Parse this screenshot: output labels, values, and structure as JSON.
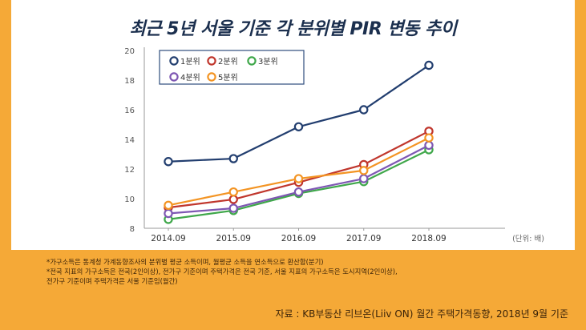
{
  "chart_data": {
    "type": "line",
    "title": "최근 5년 서울 기준 각 분위별 PIR 변동 추이",
    "categories": [
      "2014.09",
      "2015.09",
      "2016.09",
      "2017.09",
      "2018.09"
    ],
    "ylim": [
      8,
      20
    ],
    "yticks": [
      "8",
      "10",
      "12",
      "14",
      "16",
      "18",
      "20"
    ],
    "unit_label": "(단위: 배)",
    "legend_position": "top-left",
    "series": [
      {
        "name": "1분위",
        "color": "#223e6f",
        "values": [
          12.5,
          12.7,
          14.85,
          16.0,
          19.0
        ]
      },
      {
        "name": "2분위",
        "color": "#c0362c",
        "values": [
          9.4,
          9.95,
          11.1,
          12.3,
          14.55
        ]
      },
      {
        "name": "3분위",
        "color": "#3fa74a",
        "values": [
          8.6,
          9.2,
          10.35,
          11.15,
          13.3
        ]
      },
      {
        "name": "4분위",
        "color": "#7e57b3",
        "values": [
          9.0,
          9.35,
          10.45,
          11.35,
          13.6
        ]
      },
      {
        "name": "5분위",
        "color": "#f39423",
        "values": [
          9.55,
          10.45,
          11.35,
          11.9,
          14.1
        ]
      }
    ]
  },
  "notes": [
    "*가구소득은 통계청 가계동향조사의 분위별 평균 소득이며, 월평균 소득을 연소득으로 환산함(분기)",
    "*전국 지표의 가구소득은 전국(2인이상), 전가구 기준이며 주택가격은 전국 기준, 서울 지표의 가구소득은 도시지역(2인이상),",
    "전가구 기준이며 주택가격은 서울 기준임(월간)"
  ],
  "source": "자료 : KB부동산 리브온(Liiv ON) 월간 주택가격동향, 2018년 9월 기준"
}
